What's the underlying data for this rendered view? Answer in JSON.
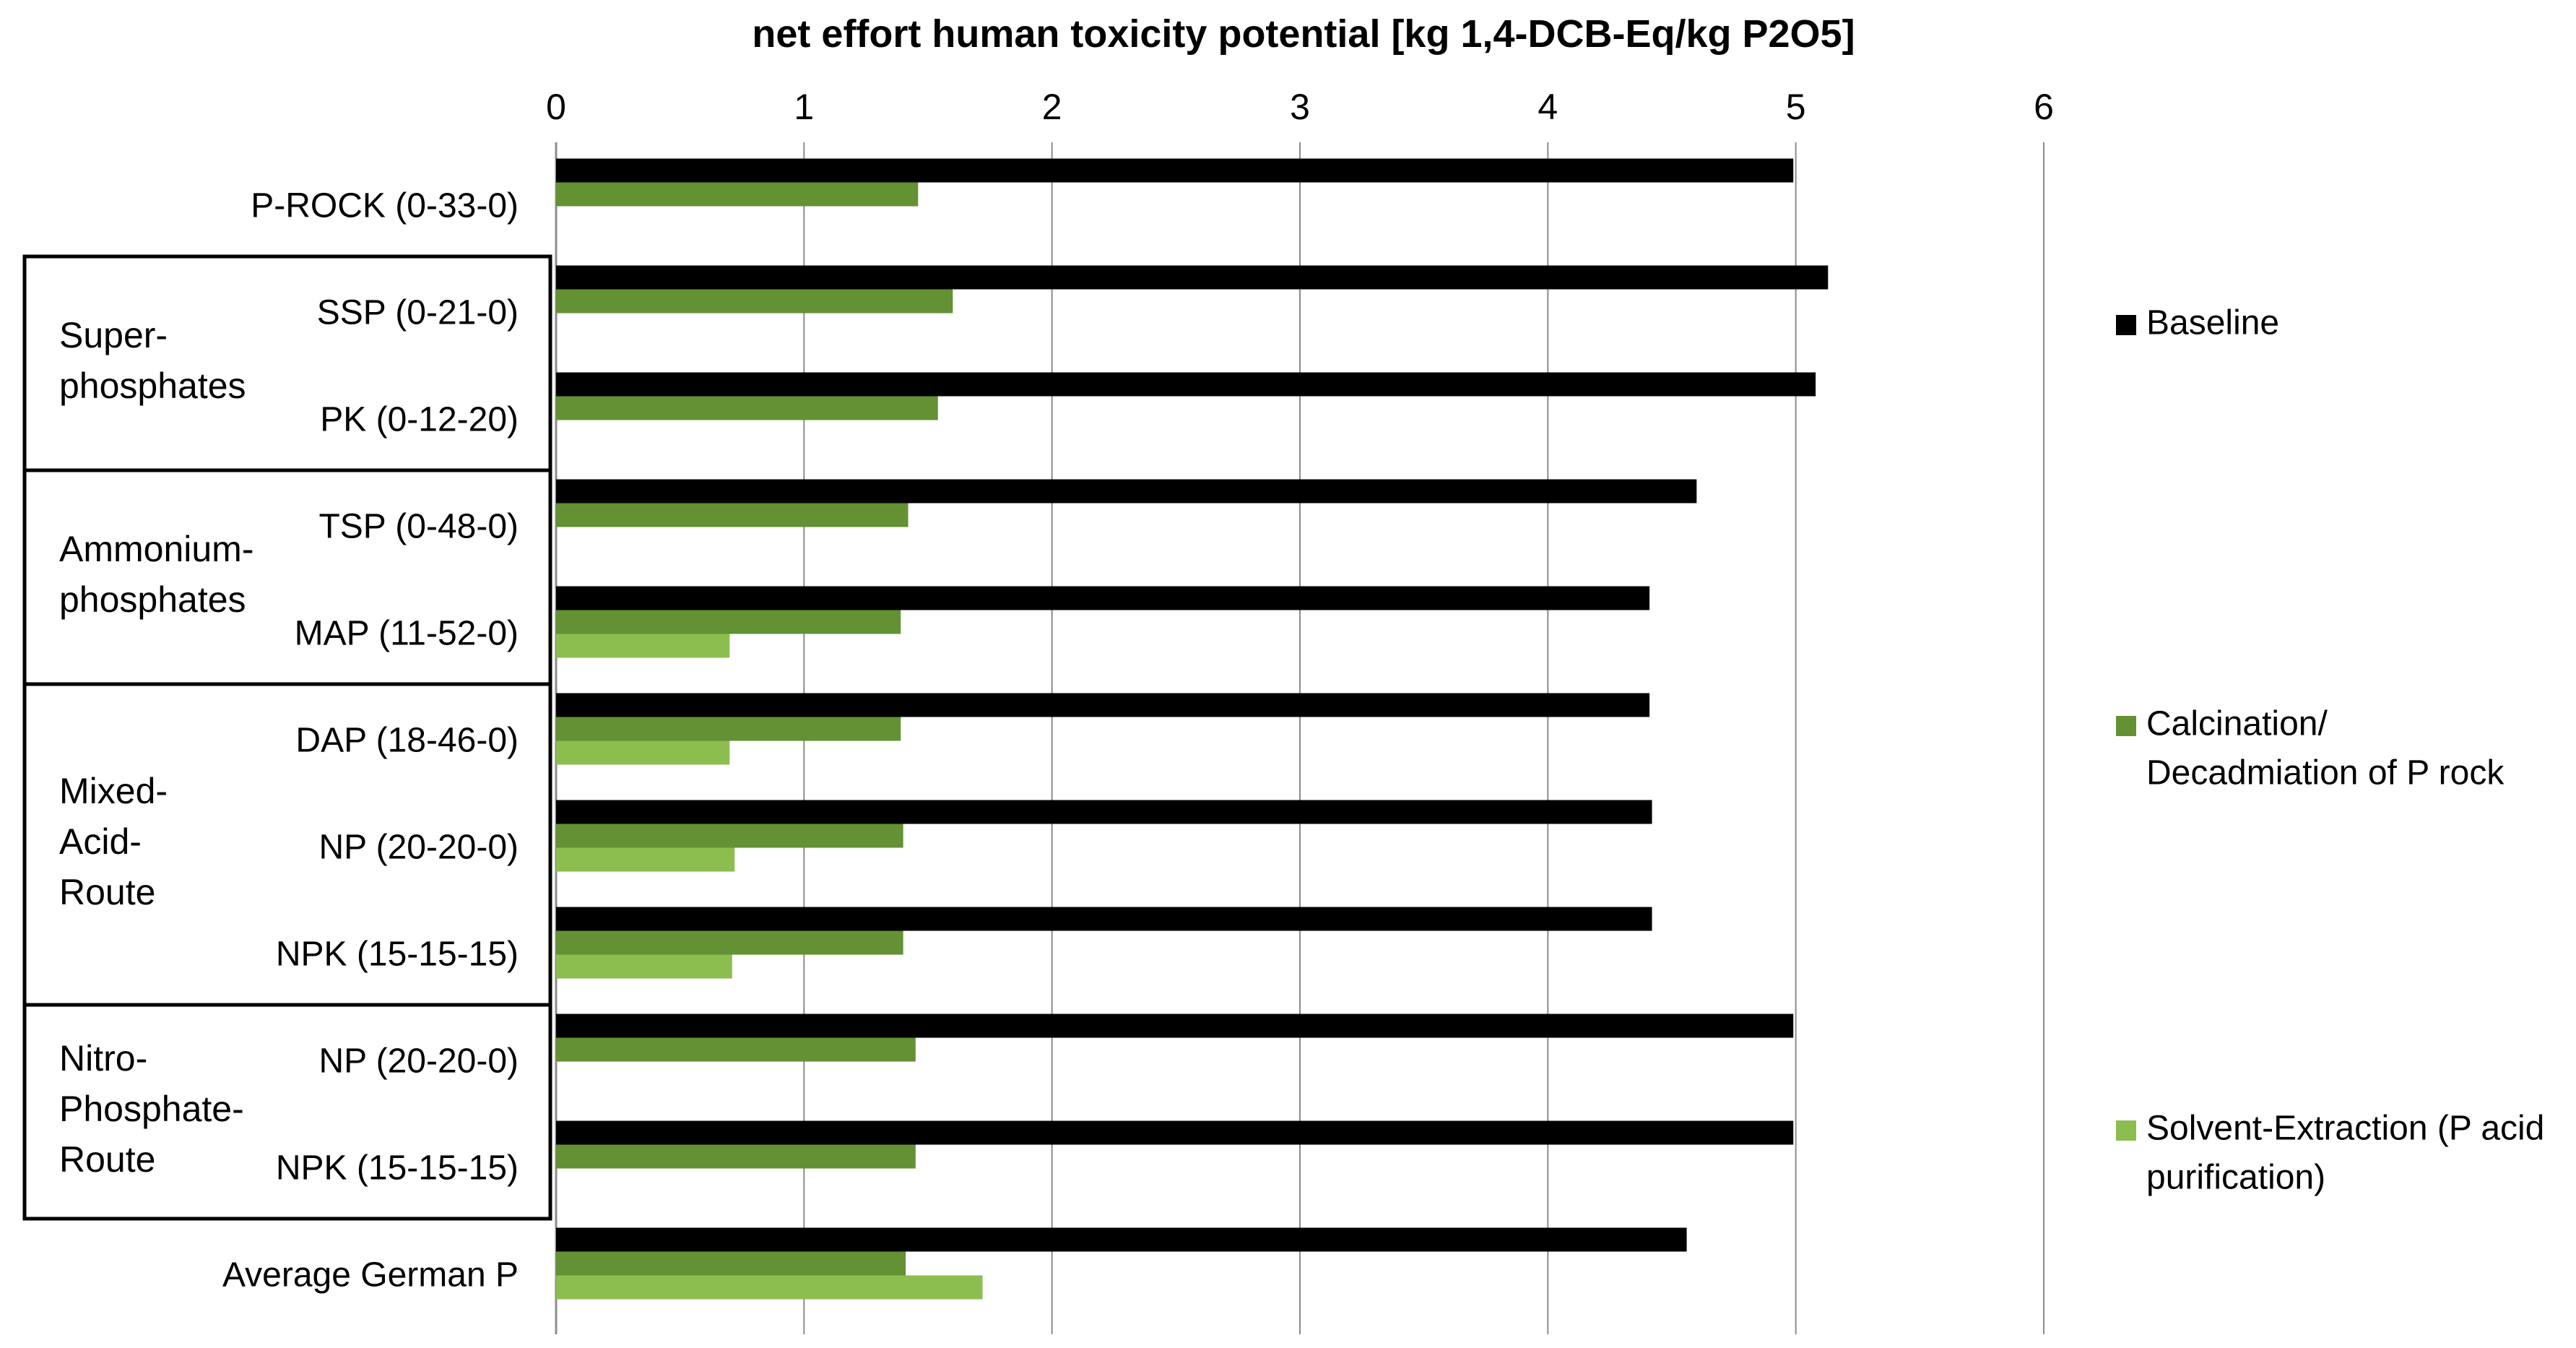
{
  "chart_data": {
    "type": "bar",
    "orientation": "horizontal",
    "title": "net effort human toxicity potential [kg 1,4-DCB-Eq/kg P2O5]",
    "xlim": [
      0,
      6
    ],
    "xticks": [
      "0",
      "1",
      "2",
      "3",
      "4",
      "5",
      "6"
    ],
    "grid": true,
    "legend_position": "right",
    "categories": [
      "P-ROCK (0-33-0)",
      "SSP (0-21-0)",
      "PK (0-12-20)",
      "TSP (0-48-0)",
      "MAP (11-52-0)",
      "DAP (18-46-0)",
      "NP (20-20-0)",
      "NPK (15-15-15)",
      "NP (20-20-0)",
      "NPK (15-15-15)",
      "Average German P"
    ],
    "groups": [
      {
        "lines": [
          "Super-",
          "phosphates"
        ],
        "start": 1,
        "end": 2
      },
      {
        "lines": [
          "Ammonium-",
          "phosphates"
        ],
        "start": 3,
        "end": 4
      },
      {
        "lines": [
          "Mixed-",
          "Acid-",
          "Route"
        ],
        "start": 5,
        "end": 7
      },
      {
        "lines": [
          "Nitro-",
          "Phosphate-",
          "Route"
        ],
        "start": 8,
        "end": 9
      }
    ],
    "series": [
      {
        "name": "Baseline",
        "legend_lines": [
          "Baseline"
        ],
        "color": "#000000",
        "values": [
          4.99,
          5.13,
          5.08,
          4.6,
          4.41,
          4.41,
          4.42,
          4.42,
          4.99,
          4.99,
          4.56
        ]
      },
      {
        "name": "Calcination/ Decadmiation of P rock",
        "legend_lines": [
          "Calcination/",
          "Decadmiation of P rock"
        ],
        "color": "#649133",
        "values": [
          1.46,
          1.6,
          1.54,
          1.42,
          1.39,
          1.39,
          1.4,
          1.4,
          1.45,
          1.45,
          1.41
        ]
      },
      {
        "name": "Solvent-Extraction (P acid purification)",
        "legend_lines": [
          "Solvent-Extraction (P acid",
          "purification)"
        ],
        "color": "#8cbd4f",
        "values": [
          null,
          null,
          null,
          null,
          0.7,
          0.7,
          0.72,
          0.71,
          null,
          null,
          1.72
        ]
      }
    ]
  }
}
